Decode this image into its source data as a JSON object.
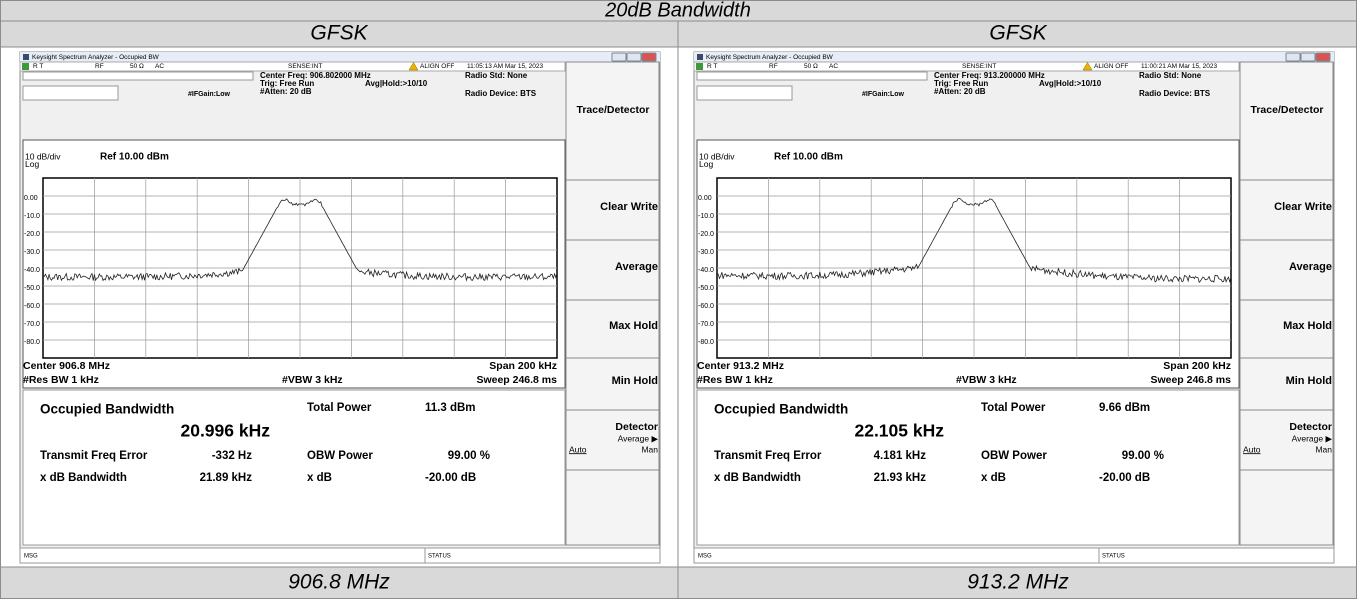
{
  "table": {
    "title": "20dB Bandwidth",
    "columns": [
      {
        "header": "GFSK",
        "footer": "906.8 MHz",
        "screen": {
          "window_title": "Keysight Spectrum Analyzer - Occupied BW",
          "status": [
            "R T",
            "RF",
            "50 Ω",
            "AC",
            "SENSE:INT",
            "ALIGN OFF",
            "11:05:13 AM Mar 15, 2023"
          ],
          "settings": {
            "center_freq": "Center Freq: 906.802000 MHz",
            "trig": "Trig: Free Run",
            "avg_hold": "Avg|Hold:>10/10",
            "atten": "#Atten: 20 dB",
            "if_gain": "#IFGain:Low",
            "radio_std": "Radio Std: None",
            "radio_device": "Radio Device: BTS"
          },
          "scale": "10 dB/div",
          "ref": "Ref 10.00 dBm",
          "log": "Log",
          "y_labels": [
            "0.00",
            "-10.0",
            "-20.0",
            "-30.0",
            "-40.0",
            "-50.0",
            "-60.0",
            "-70.0",
            "-80.0"
          ],
          "center": "Center 906.8 MHz",
          "span": "Span 200 kHz",
          "res_bw": "#Res BW 1 kHz",
          "vbw": "#VBW 3 kHz",
          "sweep": "Sweep 246.8 ms",
          "results": {
            "obw_label": "Occupied Bandwidth",
            "obw": "20.996 kHz",
            "total_power_label": "Total Power",
            "total_power": "11.3 dBm",
            "freq_error_label": "Transmit Freq Error",
            "freq_error": "-332 Hz",
            "obw_power_label": "OBW Power",
            "obw_power": "99.00 %",
            "xdb_bw_label": "x dB Bandwidth",
            "xdb_bw": "21.89 kHz",
            "xdb_label": "x dB",
            "xdb": "-20.00 dB"
          },
          "msg": "MSG",
          "status_label": "STATUS",
          "menu": {
            "title": "Trace/Detector",
            "items": [
              "Clear Write",
              "Average",
              "Max Hold",
              "Min Hold"
            ],
            "detector": "Detector",
            "detector_value": "Average ▶",
            "auto": "Auto",
            "man": "Man"
          }
        }
      },
      {
        "header": "GFSK",
        "footer": "913.2 MHz",
        "screen": {
          "window_title": "Keysight Spectrum Analyzer - Occupied BW",
          "status": [
            "R T",
            "RF",
            "50 Ω",
            "AC",
            "SENSE:INT",
            "ALIGN OFF",
            "11:00:21 AM Mar 15, 2023"
          ],
          "settings": {
            "center_freq": "Center Freq: 913.200000 MHz",
            "trig": "Trig: Free Run",
            "avg_hold": "Avg|Hold:>10/10",
            "atten": "#Atten: 20 dB",
            "if_gain": "#IFGain:Low",
            "radio_std": "Radio Std: None",
            "radio_device": "Radio Device: BTS"
          },
          "scale": "10 dB/div",
          "ref": "Ref 10.00 dBm",
          "log": "Log",
          "y_labels": [
            "0.00",
            "-10.0",
            "-20.0",
            "-30.0",
            "-40.0",
            "-50.0",
            "-60.0",
            "-70.0",
            "-80.0"
          ],
          "center": "Center 913.2 MHz",
          "span": "Span 200 kHz",
          "res_bw": "#Res BW 1 kHz",
          "vbw": "#VBW 3 kHz",
          "sweep": "Sweep 246.8 ms",
          "results": {
            "obw_label": "Occupied Bandwidth",
            "obw": "22.105 kHz",
            "total_power_label": "Total Power",
            "total_power": "9.66 dBm",
            "freq_error_label": "Transmit Freq Error",
            "freq_error": "4.181 kHz",
            "obw_power_label": "OBW Power",
            "obw_power": "99.00 %",
            "xdb_bw_label": "x dB Bandwidth",
            "xdb_bw": "21.93 kHz",
            "xdb_label": "x dB",
            "xdb": "-20.00 dB"
          },
          "msg": "MSG",
          "status_label": "STATUS",
          "menu": {
            "title": "Trace/Detector",
            "items": [
              "Clear Write",
              "Average",
              "Max Hold",
              "Min Hold"
            ],
            "detector": "Detector",
            "detector_value": "Average ▶",
            "auto": "Auto",
            "man": "Man"
          }
        }
      }
    ]
  }
}
